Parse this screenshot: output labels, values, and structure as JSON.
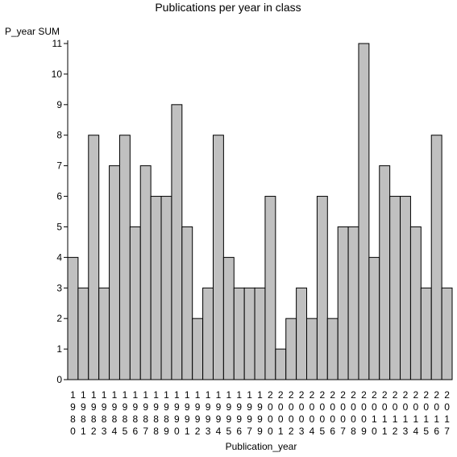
{
  "chart_data": {
    "type": "bar",
    "title": "Publications per year in class",
    "ylabel": "P_year SUM",
    "xlabel": "Publication_year",
    "ylim": [
      0,
      11
    ],
    "yticks": [
      0,
      1,
      2,
      3,
      4,
      5,
      6,
      7,
      8,
      9,
      10,
      11
    ],
    "grid": false,
    "bar_color": "#c0c0c0",
    "categories": [
      "1980",
      "1981",
      "1982",
      "1983",
      "1984",
      "1985",
      "1986",
      "1987",
      "1988",
      "1989",
      "1990",
      "1991",
      "1992",
      "1993",
      "1994",
      "1995",
      "1996",
      "1997",
      "1999",
      "2000",
      "2001",
      "2002",
      "2003",
      "2004",
      "2005",
      "2006",
      "2007",
      "2008",
      "2009",
      "2010",
      "2011",
      "2012",
      "2013",
      "2014",
      "2015",
      "2016",
      "2017"
    ],
    "values": [
      4,
      3,
      8,
      3,
      7,
      8,
      5,
      7,
      6,
      6,
      9,
      5,
      2,
      3,
      8,
      4,
      3,
      3,
      3,
      6,
      1,
      2,
      3,
      2,
      6,
      2,
      5,
      5,
      11,
      4,
      7,
      6,
      6,
      5,
      3,
      8,
      3
    ]
  }
}
